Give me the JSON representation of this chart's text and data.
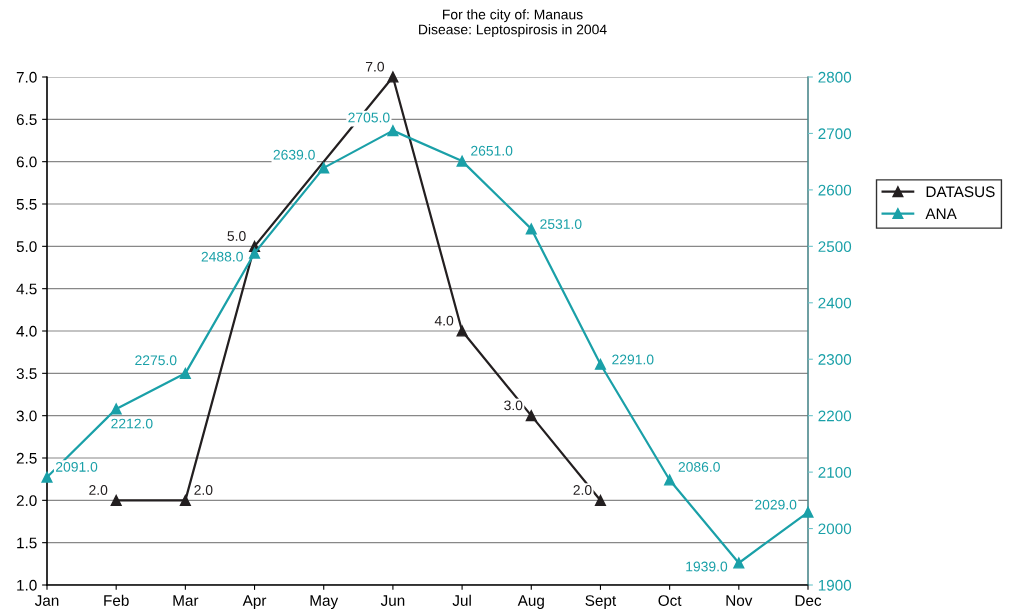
{
  "chart_data": {
    "type": "line",
    "title": "For the city of: Manaus\nDisease: Leptospirosis in 2004",
    "categories": [
      "Jan",
      "Feb",
      "Mar",
      "Apr",
      "May",
      "Jun",
      "Jul",
      "Aug",
      "Sept",
      "Oct",
      "Nov",
      "Dec"
    ],
    "series": [
      {
        "name": "DATASUS",
        "color": "#231f20",
        "values": [
          null,
          2,
          2,
          5,
          null,
          7,
          4,
          3,
          2,
          null,
          null,
          null
        ],
        "value_labels": [
          null,
          "2.0",
          "2.0",
          "5.0",
          null,
          "7.0",
          "4.0",
          "3.0",
          "2.0",
          null,
          null,
          null
        ]
      },
      {
        "name": "ANA",
        "color": "#1aa0a8",
        "axis": "y2",
        "values": [
          2091,
          2212,
          2275,
          2488,
          2639,
          2705,
          2651,
          2531,
          2291,
          2086,
          1939,
          2029
        ],
        "value_labels": [
          "2091.0",
          "2212.0",
          "2275.0",
          "2488.0",
          "2639.0",
          "2705.0",
          "2651.0",
          "2531.0",
          "2291.0",
          "2086.0",
          "1939.0",
          "2029.0"
        ]
      }
    ],
    "ylim": [
      1.0,
      7.0
    ],
    "yticks": [
      {
        "value": 1.0,
        "label": "1.0"
      },
      {
        "value": 1.5,
        "label": "1.5"
      },
      {
        "value": 2.0,
        "label": "2.0"
      },
      {
        "value": 2.5,
        "label": "2.5"
      },
      {
        "value": 3.0,
        "label": "3.0"
      },
      {
        "value": 3.5,
        "label": "3.5"
      },
      {
        "value": 4.0,
        "label": "4.0"
      },
      {
        "value": 4.5,
        "label": "4.5"
      },
      {
        "value": 5.0,
        "label": "5.0"
      },
      {
        "value": 5.5,
        "label": "5.5"
      },
      {
        "value": 6.0,
        "label": "6.0"
      },
      {
        "value": 6.5,
        "label": "6.5"
      },
      {
        "value": 7.0,
        "label": "7.0"
      }
    ],
    "y2lim": [
      1900,
      2800
    ],
    "y2ticks": [
      1900,
      2000,
      2100,
      2200,
      2300,
      2400,
      2500,
      2600,
      2700,
      2800
    ],
    "grid": "y",
    "legend": "right",
    "marker": "triangle",
    "line_style": "solid"
  }
}
